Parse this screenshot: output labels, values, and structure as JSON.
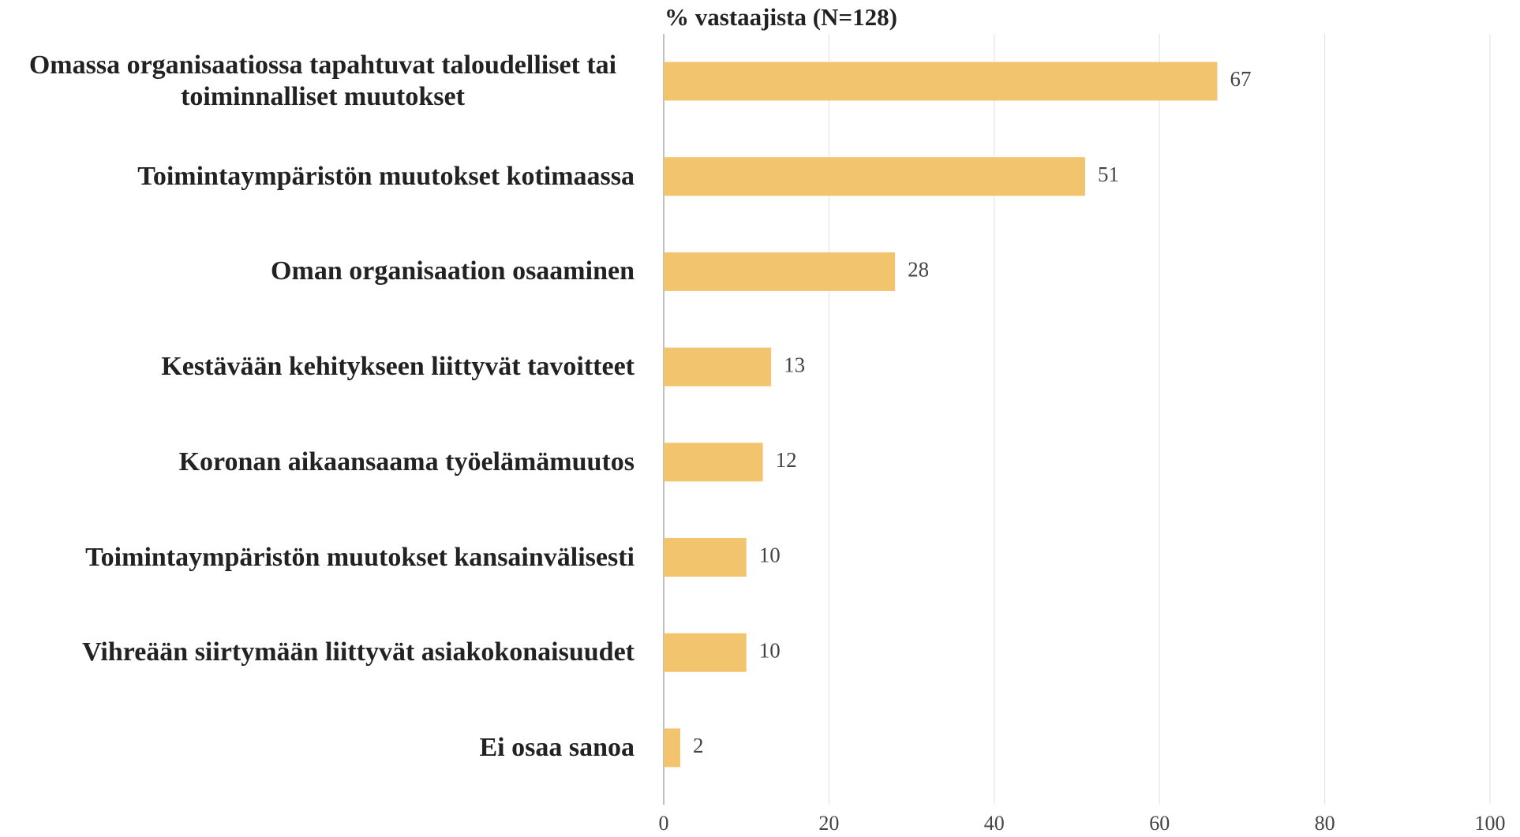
{
  "chart_data": {
    "type": "bar",
    "orientation": "horizontal",
    "title": "% vastaajista (N=128)",
    "categories": [
      "Omassa organisaatiossa tapahtuvat taloudelliset tai toiminnalliset muutokset",
      "Toimintaympäristön muutokset kotimaassa",
      "Oman organisaation osaaminen",
      "Kestävään kehitykseen liittyvät tavoitteet",
      "Koronan aikaansaama työelämämuutos",
      "Toimintaympäristön muutokset kansainvälisesti",
      "Vihreään siirtymään liittyvät asiakokonaisuudet",
      "Ei osaa sanoa"
    ],
    "values": [
      67,
      51,
      28,
      13,
      12,
      10,
      10,
      2
    ],
    "color": "#f2c46d",
    "xlim": [
      0,
      100
    ],
    "xticks": [
      0,
      20,
      40,
      60,
      80,
      100
    ],
    "grid": true
  }
}
